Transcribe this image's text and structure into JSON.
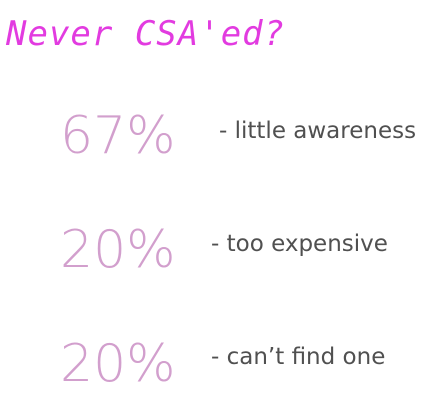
{
  "title": "Never CSA'ed?",
  "stats": [
    {
      "percent": "67%",
      "reason": "- little awareness"
    },
    {
      "percent": "20%",
      "reason": "- too expensive"
    },
    {
      "percent": "20%",
      "reason": "- can’t find one"
    }
  ],
  "colors": {
    "title": "#e23be0",
    "percent": "#d29fcd",
    "reason": "#505050"
  }
}
